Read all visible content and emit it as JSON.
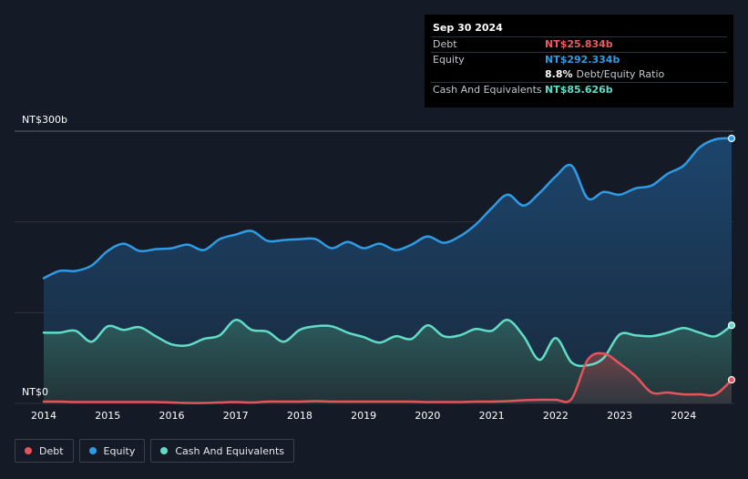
{
  "tooltip": {
    "date": "Sep 30 2024",
    "debt_label": "Debt",
    "debt_value": "NT$25.834b",
    "equity_label": "Equity",
    "equity_value": "NT$292.334b",
    "ratio_value": "8.8%",
    "ratio_label": "Debt/Equity Ratio",
    "cash_label": "Cash And Equivalents",
    "cash_value": "NT$85.626b"
  },
  "legend": [
    {
      "label": "Debt",
      "color": "#e5545c"
    },
    {
      "label": "Equity",
      "color": "#2f9be5"
    },
    {
      "label": "Cash And Equivalents",
      "color": "#62dcc6"
    }
  ],
  "chart_data": {
    "type": "area",
    "y_tick_labels": [
      "NT$300b",
      "NT$0"
    ],
    "ylim": [
      0,
      300
    ],
    "xlim": [
      2014.0,
      2024.75
    ],
    "x_tick_labels": [
      "2014",
      "2015",
      "2016",
      "2017",
      "2018",
      "2019",
      "2020",
      "2021",
      "2022",
      "2023",
      "2024"
    ],
    "grid": true,
    "legend_position": "bottom-left",
    "series": [
      {
        "name": "Equity",
        "color": "#2f9be5",
        "x": [
          2014.0,
          2014.25,
          2014.5,
          2014.75,
          2015.0,
          2015.25,
          2015.5,
          2015.75,
          2016.0,
          2016.25,
          2016.5,
          2016.75,
          2017.0,
          2017.25,
          2017.5,
          2017.75,
          2018.0,
          2018.25,
          2018.5,
          2018.75,
          2019.0,
          2019.25,
          2019.5,
          2019.75,
          2020.0,
          2020.25,
          2020.5,
          2020.75,
          2021.0,
          2021.25,
          2021.5,
          2021.75,
          2022.0,
          2022.25,
          2022.5,
          2022.75,
          2023.0,
          2023.25,
          2023.5,
          2023.75,
          2024.0,
          2024.25,
          2024.5,
          2024.75
        ],
        "y": [
          138,
          146,
          146,
          152,
          168,
          176,
          168,
          170,
          171,
          175,
          169,
          181,
          186,
          190,
          179,
          180,
          181,
          181,
          171,
          178,
          171,
          176,
          169,
          175,
          184,
          177,
          184,
          197,
          215,
          230,
          218,
          232,
          250,
          262,
          226,
          233,
          230,
          237,
          240,
          253,
          262,
          282,
          291,
          292
        ]
      },
      {
        "name": "Cash And Equivalents",
        "color": "#62dcc6",
        "x": [
          2014.0,
          2014.25,
          2014.5,
          2014.75,
          2015.0,
          2015.25,
          2015.5,
          2015.75,
          2016.0,
          2016.25,
          2016.5,
          2016.75,
          2017.0,
          2017.25,
          2017.5,
          2017.75,
          2018.0,
          2018.25,
          2018.5,
          2018.75,
          2019.0,
          2019.25,
          2019.5,
          2019.75,
          2020.0,
          2020.25,
          2020.5,
          2020.75,
          2021.0,
          2021.25,
          2021.5,
          2021.75,
          2022.0,
          2022.25,
          2022.5,
          2022.75,
          2023.0,
          2023.25,
          2023.5,
          2023.75,
          2024.0,
          2024.25,
          2024.5,
          2024.75
        ],
        "y": [
          78,
          78,
          80,
          68,
          85,
          81,
          84,
          74,
          65,
          64,
          71,
          75,
          92,
          81,
          79,
          68,
          81,
          85,
          85,
          78,
          73,
          67,
          74,
          71,
          86,
          74,
          75,
          82,
          80,
          92,
          74,
          48,
          72,
          45,
          42,
          50,
          76,
          75,
          74,
          78,
          83,
          78,
          74,
          86
        ]
      },
      {
        "name": "Debt",
        "color": "#e5545c",
        "x": [
          2014.0,
          2014.25,
          2014.5,
          2014.75,
          2015.0,
          2015.25,
          2015.5,
          2015.75,
          2016.0,
          2016.25,
          2016.5,
          2016.75,
          2017.0,
          2017.25,
          2017.5,
          2017.75,
          2018.0,
          2018.25,
          2018.5,
          2018.75,
          2019.0,
          2019.25,
          2019.5,
          2019.75,
          2020.0,
          2020.25,
          2020.5,
          2020.75,
          2021.0,
          2021.25,
          2021.5,
          2021.75,
          2022.0,
          2022.25,
          2022.5,
          2022.75,
          2023.0,
          2023.25,
          2023.5,
          2023.75,
          2024.0,
          2024.25,
          2024.5,
          2024.75
        ],
        "y": [
          2,
          2,
          1.5,
          1.5,
          1.5,
          1.5,
          1.5,
          1.5,
          1,
          0.5,
          0.5,
          1,
          1.5,
          1,
          2,
          2,
          2,
          2.5,
          2,
          2,
          2,
          2,
          2,
          2,
          1.5,
          1.5,
          1.5,
          2,
          2,
          2.5,
          3.5,
          4,
          4,
          5,
          48,
          55,
          44,
          30,
          12,
          12,
          10,
          10,
          10,
          26
        ]
      }
    ]
  }
}
